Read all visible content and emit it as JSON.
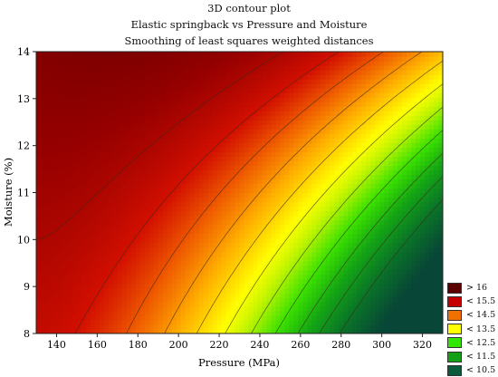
{
  "chart_data": {
    "type": "heatmap",
    "title": "3D contour plot",
    "subtitle_lines": [
      "Elastic springback vs Pressure and Moisture",
      "Smoothing of least squares weighted distances"
    ],
    "xlabel": "Pressure (MPa)",
    "ylabel": "Moisture (%)",
    "xlim": [
      130,
      330
    ],
    "ylim": [
      8,
      14
    ],
    "x_ticks": [
      140,
      160,
      180,
      200,
      220,
      240,
      260,
      280,
      300,
      320
    ],
    "y_ticks": [
      8,
      9,
      10,
      11,
      12,
      13,
      14
    ],
    "legend": [
      {
        "label": "> 16",
        "color": "#5c0000"
      },
      {
        "label": "< 15.5",
        "color": "#c40000"
      },
      {
        "label": "< 14.5",
        "color": "#f07000"
      },
      {
        "label": "< 13.5",
        "color": "#ffff00"
      },
      {
        "label": "< 12.5",
        "color": "#33e600"
      },
      {
        "label": "< 11.5",
        "color": "#14a014"
      },
      {
        "label": "< 10.5",
        "color": "#0a5a3c"
      }
    ],
    "z_range": [
      10,
      17.5
    ],
    "contour_step": 0.5,
    "contour_levels": [
      11,
      11.5,
      12,
      12.5,
      13,
      13.5,
      14,
      14.5,
      15,
      15.5,
      16
    ],
    "legend_placement": "bottom-right",
    "grid": false
  }
}
